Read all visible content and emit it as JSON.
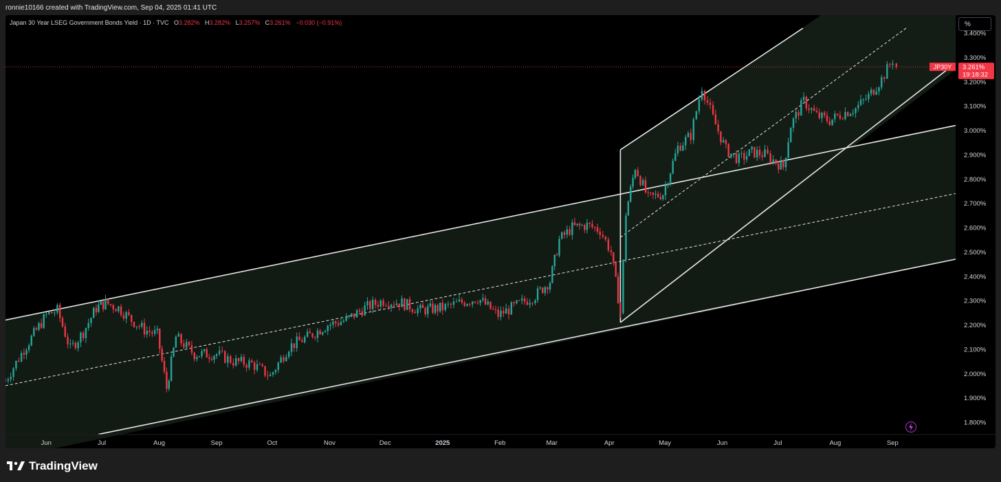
{
  "header": {
    "attribution": "ronnie10166 created with TradingView.com, Sep 04, 2025 01:41 UTC"
  },
  "legend": {
    "title": "Japan 30 Year LSEG Government Bonds Yield · 1D · TVC",
    "o_label": "O",
    "o_value": "3.282%",
    "h_label": "H",
    "h_value": "3.282%",
    "l_label": "L",
    "l_value": "3.257%",
    "c_label": "C",
    "c_value": "3.261%",
    "change": "−0.030 (−0.91%)"
  },
  "scale_button": {
    "label": "%"
  },
  "colors": {
    "up": "#26a69a",
    "down": "#f23645",
    "background": "#000000",
    "channel_line": "#e6e6e6",
    "channel_fill": "#121a14",
    "price_line": "#f23645"
  },
  "chart_data": {
    "type": "candlestick",
    "title": "",
    "ylabel": "",
    "xlabel": "",
    "ylim": [
      1.75,
      3.42
    ],
    "y_ticks": [
      "1.800%",
      "1.900%",
      "2.000%",
      "2.100%",
      "2.200%",
      "2.300%",
      "2.400%",
      "2.500%",
      "2.600%",
      "2.700%",
      "2.800%",
      "2.900%",
      "3.000%",
      "3.100%",
      "3.200%",
      "3.300%",
      "3.400%"
    ],
    "x_labels": [
      {
        "label": "Jun",
        "date": "2024-06-01"
      },
      {
        "label": "Jul",
        "date": "2024-07-01"
      },
      {
        "label": "Aug",
        "date": "2024-08-01"
      },
      {
        "label": "Sep",
        "date": "2024-09-01"
      },
      {
        "label": "Oct",
        "date": "2024-10-01"
      },
      {
        "label": "Nov",
        "date": "2024-11-01"
      },
      {
        "label": "Dec",
        "date": "2024-12-01"
      },
      {
        "label": "2025",
        "date": "2025-01-01",
        "bold": true
      },
      {
        "label": "Feb",
        "date": "2025-02-01"
      },
      {
        "label": "Mar",
        "date": "2025-03-01"
      },
      {
        "label": "Apr",
        "date": "2025-04-01"
      },
      {
        "label": "May",
        "date": "2025-05-01"
      },
      {
        "label": "Jun",
        "date": "2025-06-01"
      },
      {
        "label": "Jul",
        "date": "2025-07-01"
      },
      {
        "label": "Aug",
        "date": "2025-08-01"
      },
      {
        "label": "Sep",
        "date": "2025-09-01"
      }
    ],
    "x_range": [
      "2024-05-10",
      "2025-10-05"
    ],
    "grid": false,
    "last_price": {
      "symbol": "JP30Y",
      "value": 3.261,
      "label": "3.261%",
      "countdown": "19:18:32"
    },
    "ohlc_last": {
      "open": 3.282,
      "high": 3.282,
      "low": 3.257,
      "close": 3.261
    },
    "series": [
      {
        "date": "2024-05-10",
        "close": 1.97
      },
      {
        "date": "2024-05-20",
        "close": 2.1
      },
      {
        "date": "2024-06-01",
        "close": 2.24
      },
      {
        "date": "2024-06-07",
        "close": 2.26
      },
      {
        "date": "2024-06-14",
        "close": 2.1
      },
      {
        "date": "2024-06-21",
        "close": 2.17
      },
      {
        "date": "2024-06-28",
        "close": 2.27
      },
      {
        "date": "2024-07-03",
        "close": 2.29
      },
      {
        "date": "2024-07-10",
        "close": 2.27
      },
      {
        "date": "2024-07-17",
        "close": 2.22
      },
      {
        "date": "2024-07-24",
        "close": 2.18
      },
      {
        "date": "2024-07-31",
        "close": 2.16
      },
      {
        "date": "2024-08-05",
        "close": 1.94
      },
      {
        "date": "2024-08-10",
        "close": 2.15
      },
      {
        "date": "2024-08-20",
        "close": 2.08
      },
      {
        "date": "2024-09-01",
        "close": 2.08
      },
      {
        "date": "2024-09-10",
        "close": 2.05
      },
      {
        "date": "2024-09-20",
        "close": 2.04
      },
      {
        "date": "2024-09-30",
        "close": 1.99
      },
      {
        "date": "2024-10-10",
        "close": 2.11
      },
      {
        "date": "2024-10-20",
        "close": 2.15
      },
      {
        "date": "2024-10-31",
        "close": 2.2
      },
      {
        "date": "2024-11-10",
        "close": 2.22
      },
      {
        "date": "2024-11-20",
        "close": 2.27
      },
      {
        "date": "2024-11-30",
        "close": 2.3
      },
      {
        "date": "2024-12-10",
        "close": 2.29
      },
      {
        "date": "2024-12-20",
        "close": 2.26
      },
      {
        "date": "2025-01-01",
        "close": 2.27
      },
      {
        "date": "2025-01-10",
        "close": 2.29
      },
      {
        "date": "2025-01-20",
        "close": 2.31
      },
      {
        "date": "2025-01-31",
        "close": 2.24
      },
      {
        "date": "2025-02-10",
        "close": 2.28
      },
      {
        "date": "2025-02-20",
        "close": 2.32
      },
      {
        "date": "2025-02-28",
        "close": 2.38
      },
      {
        "date": "2025-03-05",
        "close": 2.55
      },
      {
        "date": "2025-03-12",
        "close": 2.6
      },
      {
        "date": "2025-03-20",
        "close": 2.61
      },
      {
        "date": "2025-03-27",
        "close": 2.59
      },
      {
        "date": "2025-04-02",
        "close": 2.5
      },
      {
        "date": "2025-04-07",
        "close": 2.25
      },
      {
        "date": "2025-04-10",
        "close": 2.66
      },
      {
        "date": "2025-04-15",
        "close": 2.85
      },
      {
        "date": "2025-04-22",
        "close": 2.72
      },
      {
        "date": "2025-04-30",
        "close": 2.74
      },
      {
        "date": "2025-05-08",
        "close": 2.93
      },
      {
        "date": "2025-05-15",
        "close": 2.98
      },
      {
        "date": "2025-05-21",
        "close": 3.18
      },
      {
        "date": "2025-05-27",
        "close": 3.05
      },
      {
        "date": "2025-06-03",
        "close": 2.92
      },
      {
        "date": "2025-06-10",
        "close": 2.88
      },
      {
        "date": "2025-06-17",
        "close": 2.91
      },
      {
        "date": "2025-06-24",
        "close": 2.9
      },
      {
        "date": "2025-06-30",
        "close": 2.87
      },
      {
        "date": "2025-07-04",
        "close": 2.85
      },
      {
        "date": "2025-07-08",
        "close": 3.02
      },
      {
        "date": "2025-07-15",
        "close": 3.12
      },
      {
        "date": "2025-07-22",
        "close": 3.06
      },
      {
        "date": "2025-07-29",
        "close": 3.04
      },
      {
        "date": "2025-08-05",
        "close": 3.07
      },
      {
        "date": "2025-08-12",
        "close": 3.09
      },
      {
        "date": "2025-08-19",
        "close": 3.14
      },
      {
        "date": "2025-08-26",
        "close": 3.21
      },
      {
        "date": "2025-09-01",
        "close": 3.29
      },
      {
        "date": "2025-09-03",
        "close": 3.261
      }
    ]
  },
  "footer": {
    "brand": "TradingView"
  }
}
